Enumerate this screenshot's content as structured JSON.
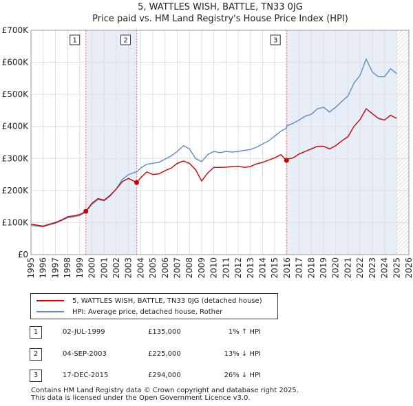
{
  "chart_data": {
    "type": "line",
    "title": "5, WATTLES WISH, BATTLE, TN33 0JG",
    "subtitle": "Price paid vs. HM Land Registry's House Price Index (HPI)",
    "xlim": [
      1995,
      2026
    ],
    "ylim": [
      0,
      700000
    ],
    "yticks": [
      {
        "value": 0,
        "label": "£0"
      },
      {
        "value": 100000,
        "label": "£100K"
      },
      {
        "value": 200000,
        "label": "£200K"
      },
      {
        "value": 300000,
        "label": "£300K"
      },
      {
        "value": 400000,
        "label": "£400K"
      },
      {
        "value": 500000,
        "label": "£500K"
      },
      {
        "value": 600000,
        "label": "£600K"
      },
      {
        "value": 700000,
        "label": "£700K"
      }
    ],
    "xticks": [
      "1995",
      "1996",
      "1997",
      "1998",
      "1999",
      "2000",
      "2001",
      "2002",
      "2003",
      "2004",
      "2005",
      "2006",
      "2007",
      "2008",
      "2009",
      "2010",
      "2011",
      "2012",
      "2013",
      "2014",
      "2015",
      "2016",
      "2017",
      "2018",
      "2019",
      "2020",
      "2021",
      "2022",
      "2023",
      "2024",
      "2025",
      "2026"
    ],
    "forecast_start": 2025.0,
    "colors": {
      "property": "#cc0000",
      "hpi": "#5b8bc5",
      "shade": "#e8eef8",
      "marker": "#cc0000",
      "vline": "#e07070"
    },
    "series": [
      {
        "name": "5, WATTLES WISH, BATTLE, TN33 0JG (detached house)",
        "color": "#cc0000",
        "points": [
          [
            1995.0,
            95000
          ],
          [
            1995.5,
            92000
          ],
          [
            1996.0,
            89000
          ],
          [
            1996.5,
            95000
          ],
          [
            1997.0,
            100000
          ],
          [
            1997.5,
            108000
          ],
          [
            1998.0,
            118000
          ],
          [
            1998.5,
            121000
          ],
          [
            1999.0,
            125000
          ],
          [
            1999.5,
            135000
          ],
          [
            2000.0,
            160000
          ],
          [
            2000.5,
            175000
          ],
          [
            2001.0,
            170000
          ],
          [
            2001.5,
            185000
          ],
          [
            2002.0,
            205000
          ],
          [
            2002.5,
            228000
          ],
          [
            2003.0,
            238000
          ],
          [
            2003.67,
            225000
          ],
          [
            2004.0,
            240000
          ],
          [
            2004.5,
            258000
          ],
          [
            2005.0,
            250000
          ],
          [
            2005.5,
            252000
          ],
          [
            2006.0,
            262000
          ],
          [
            2006.5,
            270000
          ],
          [
            2007.0,
            285000
          ],
          [
            2007.5,
            292000
          ],
          [
            2008.0,
            285000
          ],
          [
            2008.5,
            265000
          ],
          [
            2009.0,
            230000
          ],
          [
            2009.5,
            255000
          ],
          [
            2010.0,
            272000
          ],
          [
            2010.5,
            272000
          ],
          [
            2011.0,
            273000
          ],
          [
            2011.5,
            275000
          ],
          [
            2012.0,
            276000
          ],
          [
            2012.5,
            272000
          ],
          [
            2013.0,
            275000
          ],
          [
            2013.5,
            283000
          ],
          [
            2014.0,
            288000
          ],
          [
            2014.5,
            295000
          ],
          [
            2015.0,
            302000
          ],
          [
            2015.5,
            312000
          ],
          [
            2015.96,
            294000
          ],
          [
            2016.0,
            298000
          ],
          [
            2016.5,
            302000
          ],
          [
            2017.0,
            314000
          ],
          [
            2017.5,
            322000
          ],
          [
            2018.0,
            330000
          ],
          [
            2018.5,
            338000
          ],
          [
            2019.0,
            338000
          ],
          [
            2019.5,
            330000
          ],
          [
            2020.0,
            340000
          ],
          [
            2020.5,
            355000
          ],
          [
            2021.0,
            368000
          ],
          [
            2021.5,
            400000
          ],
          [
            2022.0,
            422000
          ],
          [
            2022.5,
            455000
          ],
          [
            2023.0,
            440000
          ],
          [
            2023.5,
            425000
          ],
          [
            2024.0,
            420000
          ],
          [
            2024.5,
            435000
          ],
          [
            2025.0,
            425000
          ]
        ]
      },
      {
        "name": "HPI: Average price, detached house, Rother",
        "color": "#5b8bc5",
        "points": [
          [
            1995.0,
            91000
          ],
          [
            1995.5,
            89000
          ],
          [
            1996.0,
            87000
          ],
          [
            1996.5,
            93000
          ],
          [
            1997.0,
            98000
          ],
          [
            1997.5,
            106000
          ],
          [
            1998.0,
            115000
          ],
          [
            1998.5,
            118000
          ],
          [
            1999.0,
            122000
          ],
          [
            1999.5,
            133000
          ],
          [
            2000.0,
            157000
          ],
          [
            2000.5,
            172000
          ],
          [
            2001.0,
            168000
          ],
          [
            2001.5,
            183000
          ],
          [
            2002.0,
            205000
          ],
          [
            2002.5,
            235000
          ],
          [
            2003.0,
            250000
          ],
          [
            2003.67,
            258000
          ],
          [
            2004.0,
            270000
          ],
          [
            2004.5,
            282000
          ],
          [
            2005.0,
            285000
          ],
          [
            2005.5,
            288000
          ],
          [
            2006.0,
            298000
          ],
          [
            2006.5,
            308000
          ],
          [
            2007.0,
            322000
          ],
          [
            2007.5,
            340000
          ],
          [
            2008.0,
            330000
          ],
          [
            2008.5,
            300000
          ],
          [
            2009.0,
            290000
          ],
          [
            2009.5,
            312000
          ],
          [
            2010.0,
            322000
          ],
          [
            2010.5,
            318000
          ],
          [
            2011.0,
            322000
          ],
          [
            2011.5,
            320000
          ],
          [
            2012.0,
            322000
          ],
          [
            2012.5,
            325000
          ],
          [
            2013.0,
            328000
          ],
          [
            2013.5,
            335000
          ],
          [
            2014.0,
            345000
          ],
          [
            2014.5,
            355000
          ],
          [
            2015.0,
            370000
          ],
          [
            2015.5,
            385000
          ],
          [
            2015.96,
            395000
          ],
          [
            2016.0,
            402000
          ],
          [
            2016.5,
            410000
          ],
          [
            2017.0,
            420000
          ],
          [
            2017.5,
            432000
          ],
          [
            2018.0,
            438000
          ],
          [
            2018.5,
            455000
          ],
          [
            2019.0,
            460000
          ],
          [
            2019.5,
            445000
          ],
          [
            2020.0,
            460000
          ],
          [
            2020.5,
            478000
          ],
          [
            2021.0,
            495000
          ],
          [
            2021.5,
            535000
          ],
          [
            2022.0,
            560000
          ],
          [
            2022.5,
            610000
          ],
          [
            2023.0,
            570000
          ],
          [
            2023.5,
            555000
          ],
          [
            2024.0,
            555000
          ],
          [
            2024.5,
            580000
          ],
          [
            2025.0,
            565000
          ]
        ]
      }
    ],
    "sales": [
      {
        "label": "1",
        "x": 1999.5,
        "value": 135000
      },
      {
        "label": "2",
        "x": 2003.67,
        "value": 225000
      },
      {
        "label": "3",
        "x": 2015.96,
        "value": 294000
      }
    ]
  },
  "legend": {
    "property": "5, WATTLES WISH, BATTLE, TN33 0JG (detached house)",
    "hpi": "HPI: Average price, detached house, Rother"
  },
  "sales_table": [
    {
      "num": "1",
      "date": "02-JUL-1999",
      "price": "£135,000",
      "hpi": "1% ↑ HPI"
    },
    {
      "num": "2",
      "date": "04-SEP-2003",
      "price": "£225,000",
      "hpi": "13% ↓ HPI"
    },
    {
      "num": "3",
      "date": "17-DEC-2015",
      "price": "£294,000",
      "hpi": "26% ↓ HPI"
    }
  ],
  "footer": {
    "line1": "Contains HM Land Registry data © Crown copyright and database right 2025.",
    "line2": "This data is licensed under the Open Government Licence v3.0."
  }
}
